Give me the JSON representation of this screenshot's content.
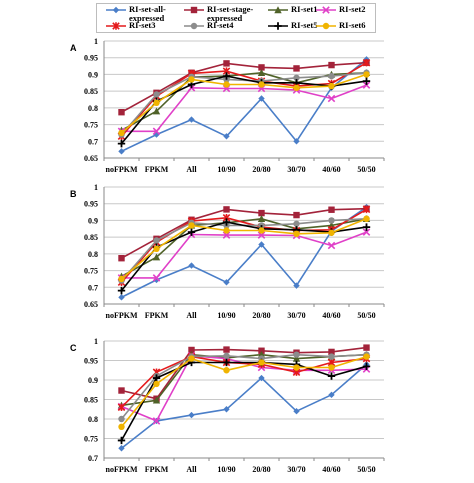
{
  "legend": {
    "entries": [
      {
        "label": "RI-set-all-\nexpressed",
        "color": "#4a7ec8",
        "marker": "diamond"
      },
      {
        "label": "RI-set-stage-\nexpressed",
        "color": "#a3233a",
        "marker": "square"
      },
      {
        "label": "RI-set1",
        "color": "#4f6228",
        "marker": "triangle"
      },
      {
        "label": "RI-set2",
        "color": "#e040c8",
        "marker": "x"
      },
      {
        "label": "RI-set3",
        "color": "#e41a1c",
        "marker": "star"
      },
      {
        "label": "RI-set4",
        "color": "#8c8c8c",
        "marker": "circle"
      },
      {
        "label": "RI-set5",
        "color": "#000000",
        "marker": "plus"
      },
      {
        "label": "RI-set6",
        "color": "#f0b400",
        "marker": "circle"
      }
    ]
  },
  "chart_data": [
    {
      "type": "line",
      "panel_label": "A",
      "categories": [
        "noFPKM",
        "FPKM",
        "All",
        "10/90",
        "20/80",
        "30/70",
        "40/60",
        "50/50"
      ],
      "ylim": [
        0.65,
        1
      ],
      "yticks": [
        "0.65",
        "0.7",
        "0.75",
        "0.8",
        "0.85",
        "0.9",
        "0.95",
        "1"
      ],
      "grid": true,
      "series": [
        {
          "name": "RI-set-all-expressed",
          "values": [
            0.67,
            0.72,
            0.765,
            0.715,
            0.828,
            0.7,
            0.86,
            0.945
          ]
        },
        {
          "name": "RI-set-stage-expressed",
          "values": [
            0.787,
            0.845,
            0.905,
            0.933,
            0.921,
            0.918,
            0.928,
            0.935
          ]
        },
        {
          "name": "RI-set1",
          "values": [
            0.733,
            0.79,
            0.892,
            0.895,
            0.905,
            0.875,
            0.9,
            0.905
          ]
        },
        {
          "name": "RI-set2",
          "values": [
            0.73,
            0.73,
            0.86,
            0.858,
            0.858,
            0.853,
            0.828,
            0.868
          ]
        },
        {
          "name": "RI-set3",
          "values": [
            0.715,
            0.835,
            0.903,
            0.91,
            0.88,
            0.865,
            0.873,
            0.935
          ]
        },
        {
          "name": "RI-set4",
          "values": [
            0.72,
            0.84,
            0.893,
            0.885,
            0.88,
            0.89,
            0.895,
            0.905
          ]
        },
        {
          "name": "RI-set5",
          "values": [
            0.693,
            0.82,
            0.87,
            0.895,
            0.875,
            0.875,
            0.865,
            0.88
          ]
        },
        {
          "name": "RI-set6",
          "values": [
            0.725,
            0.815,
            0.885,
            0.87,
            0.87,
            0.86,
            0.865,
            0.9
          ]
        }
      ]
    },
    {
      "type": "line",
      "panel_label": "B",
      "categories": [
        "noFPKM",
        "FPKM",
        "All",
        "10/90",
        "20/80",
        "30/70",
        "40/60",
        "50/50"
      ],
      "ylim": [
        0.65,
        1
      ],
      "yticks": [
        "0.65",
        "0.7",
        "0.75",
        "0.8",
        "0.85",
        "0.9",
        "0.95",
        "1"
      ],
      "grid": true,
      "series": [
        {
          "name": "RI-set-all-expressed",
          "values": [
            0.67,
            0.722,
            0.765,
            0.715,
            0.828,
            0.705,
            0.868,
            0.94
          ]
        },
        {
          "name": "RI-set-stage-expressed",
          "values": [
            0.787,
            0.845,
            0.902,
            0.933,
            0.922,
            0.916,
            0.932,
            0.935
          ]
        },
        {
          "name": "RI-set1",
          "values": [
            0.733,
            0.79,
            0.885,
            0.893,
            0.905,
            0.875,
            0.885,
            0.905
          ]
        },
        {
          "name": "RI-set2",
          "values": [
            0.728,
            0.728,
            0.858,
            0.856,
            0.856,
            0.855,
            0.825,
            0.865
          ]
        },
        {
          "name": "RI-set3",
          "values": [
            0.715,
            0.835,
            0.898,
            0.908,
            0.88,
            0.87,
            0.872,
            0.933
          ]
        },
        {
          "name": "RI-set4",
          "values": [
            0.72,
            0.84,
            0.893,
            0.885,
            0.885,
            0.89,
            0.9,
            0.905
          ]
        },
        {
          "name": "RI-set5",
          "values": [
            0.69,
            0.82,
            0.865,
            0.895,
            0.875,
            0.872,
            0.865,
            0.88
          ]
        },
        {
          "name": "RI-set6",
          "values": [
            0.725,
            0.815,
            0.885,
            0.87,
            0.87,
            0.86,
            0.863,
            0.905
          ]
        }
      ]
    },
    {
      "type": "line",
      "panel_label": "C",
      "categories": [
        "noFPKM",
        "FPKM",
        "All",
        "10/90",
        "20/80",
        "30/70",
        "40/60",
        "50/50"
      ],
      "ylim": [
        0.7,
        1
      ],
      "yticks": [
        "0.7",
        "0.75",
        "0.8",
        "0.85",
        "0.9",
        "0.95",
        "1"
      ],
      "grid": true,
      "series": [
        {
          "name": "RI-set-all-expressed",
          "values": [
            0.725,
            0.795,
            0.81,
            0.825,
            0.905,
            0.82,
            0.862,
            0.94
          ]
        },
        {
          "name": "RI-set-stage-expressed",
          "values": [
            0.873,
            0.852,
            0.977,
            0.978,
            0.975,
            0.97,
            0.972,
            0.983
          ]
        },
        {
          "name": "RI-set1",
          "values": [
            0.835,
            0.848,
            0.965,
            0.957,
            0.965,
            0.955,
            0.96,
            0.965
          ]
        },
        {
          "name": "RI-set2",
          "values": [
            0.832,
            0.795,
            0.962,
            0.955,
            0.932,
            0.925,
            0.925,
            0.928
          ]
        },
        {
          "name": "RI-set3",
          "values": [
            0.83,
            0.92,
            0.96,
            0.945,
            0.94,
            0.92,
            0.945,
            0.955
          ]
        },
        {
          "name": "RI-set4",
          "values": [
            0.8,
            0.91,
            0.96,
            0.962,
            0.955,
            0.965,
            0.96,
            0.965
          ]
        },
        {
          "name": "RI-set5",
          "values": [
            0.745,
            0.905,
            0.945,
            0.945,
            0.945,
            0.94,
            0.91,
            0.935
          ]
        },
        {
          "name": "RI-set6",
          "values": [
            0.78,
            0.89,
            0.955,
            0.925,
            0.945,
            0.932,
            0.932,
            0.96
          ]
        }
      ]
    }
  ]
}
